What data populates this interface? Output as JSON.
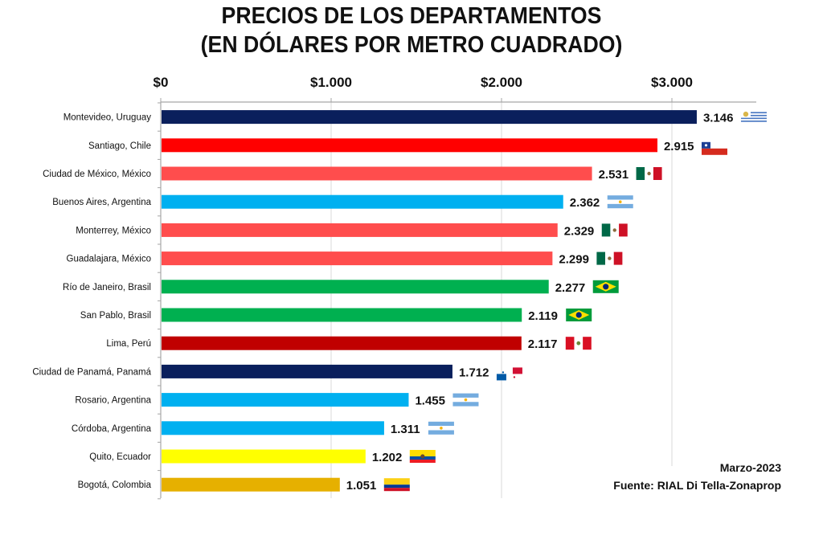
{
  "chart_data": {
    "type": "bar",
    "orientation": "horizontal",
    "title": "PRECIOS DE LOS DEPARTAMENTOS",
    "subtitle": "(EN DÓLARES POR METRO CUADRADO)",
    "xlabel": "",
    "ylabel": "",
    "xlim": [
      0,
      3500
    ],
    "x_ticks": [
      {
        "value": 0,
        "label": "$0"
      },
      {
        "value": 1000,
        "label": "$1.000"
      },
      {
        "value": 2000,
        "label": "$2.000"
      },
      {
        "value": 3000,
        "label": "$3.000"
      }
    ],
    "grid": true,
    "axis_position": "top",
    "categories": [
      "Montevideo, Uruguay",
      "Santiago, Chile",
      "Ciudad de México, México",
      "Buenos Aires, Argentina",
      "Monterrey, México",
      "Guadalajara, México",
      "Río de Janeiro, Brasil",
      "San Pablo, Brasil",
      "Lima, Perú",
      "Ciudad de Panamá, Panamá",
      "Rosario, Argentina",
      "Córdoba, Argentina",
      "Quito, Ecuador",
      "Bogotá, Colombia"
    ],
    "values": [
      3146,
      2915,
      2531,
      2362,
      2329,
      2299,
      2277,
      2119,
      2117,
      1712,
      1455,
      1311,
      1202,
      1051
    ],
    "value_labels": [
      "3.146",
      "2.915",
      "2.531",
      "2.362",
      "2.329",
      "2.299",
      "2.277",
      "2.119",
      "2.117",
      "1.712",
      "1.455",
      "1.311",
      "1.202",
      "1.051"
    ],
    "bar_colors": [
      "#0a1f5c",
      "#ff0000",
      "#ff4d4d",
      "#00b0f0",
      "#ff4d4d",
      "#ff4d4d",
      "#00b050",
      "#00b050",
      "#c00000",
      "#0a1f5c",
      "#00b0f0",
      "#00b0f0",
      "#ffff00",
      "#e6b000"
    ],
    "flags": [
      "uruguay",
      "chile",
      "mexico",
      "argentina",
      "mexico",
      "mexico",
      "brazil",
      "brazil",
      "peru",
      "panama",
      "argentina",
      "argentina",
      "ecuador",
      "colombia"
    ],
    "annotations": [
      "Marzo-2023",
      "Fuente: RIAL Di Tella-Zonaprop"
    ]
  }
}
